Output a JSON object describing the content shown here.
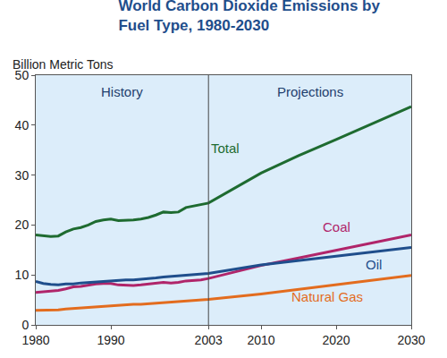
{
  "chart_data": {
    "type": "line",
    "title": "World Carbon Dioxide Emissions by\nFuel Type, 1980-2030",
    "y_label": "Billion Metric Tons",
    "annotations": [
      "History",
      "Projections"
    ],
    "projection_start": 2003,
    "x": [
      1980,
      1981,
      1982,
      1983,
      1984,
      1985,
      1986,
      1987,
      1988,
      1989,
      1990,
      1991,
      1992,
      1993,
      1994,
      1995,
      1996,
      1997,
      1998,
      1999,
      2000,
      2001,
      2002,
      2003,
      2010,
      2015,
      2020,
      2025,
      2030
    ],
    "series": [
      {
        "name": "Total",
        "color": "#1e6b30",
        "values": [
          18.0,
          17.8,
          17.7,
          17.8,
          18.6,
          19.2,
          19.5,
          20.0,
          20.7,
          21.0,
          21.2,
          20.9,
          20.9,
          21.0,
          21.2,
          21.5,
          22.0,
          22.6,
          22.5,
          22.6,
          23.5,
          23.8,
          24.0,
          24.4,
          30.4,
          33.9,
          37.1,
          40.4,
          43.7
        ]
      },
      {
        "name": "Coal",
        "color": "#b0256a",
        "values": [
          6.5,
          6.6,
          6.7,
          6.9,
          7.2,
          7.6,
          7.7,
          8.0,
          8.2,
          8.3,
          8.3,
          8.0,
          7.9,
          7.9,
          8.0,
          8.2,
          8.4,
          8.5,
          8.4,
          8.5,
          8.8,
          8.9,
          9.0,
          9.3,
          11.9,
          13.4,
          14.9,
          16.4,
          18.0
        ]
      },
      {
        "name": "Oil",
        "color": "#1f4e8c",
        "values": [
          8.7,
          8.3,
          8.1,
          8.0,
          8.2,
          8.2,
          8.4,
          8.5,
          8.7,
          8.8,
          8.9,
          8.9,
          9.0,
          9.0,
          9.1,
          9.2,
          9.4,
          9.6,
          9.7,
          9.9,
          10.0,
          10.1,
          10.2,
          10.3,
          12.0,
          12.9,
          13.8,
          14.6,
          15.5
        ]
      },
      {
        "name": "Natural Gas",
        "color": "#e36c1e",
        "values": [
          2.9,
          2.9,
          2.9,
          3.0,
          3.2,
          3.3,
          3.4,
          3.5,
          3.6,
          3.8,
          3.9,
          4.0,
          4.0,
          4.1,
          4.1,
          4.2,
          4.4,
          4.4,
          4.5,
          4.6,
          4.7,
          4.8,
          4.9,
          5.1,
          6.2,
          7.1,
          8.0,
          9.0,
          9.9
        ]
      }
    ],
    "xlim": [
      1980,
      2030
    ],
    "xticks": [
      1980,
      1990,
      2003,
      2010,
      2020,
      2030
    ],
    "ylim": [
      0,
      50
    ],
    "yticks": [
      0,
      10,
      20,
      30,
      40,
      50
    ],
    "grid": false,
    "legend": "none"
  }
}
